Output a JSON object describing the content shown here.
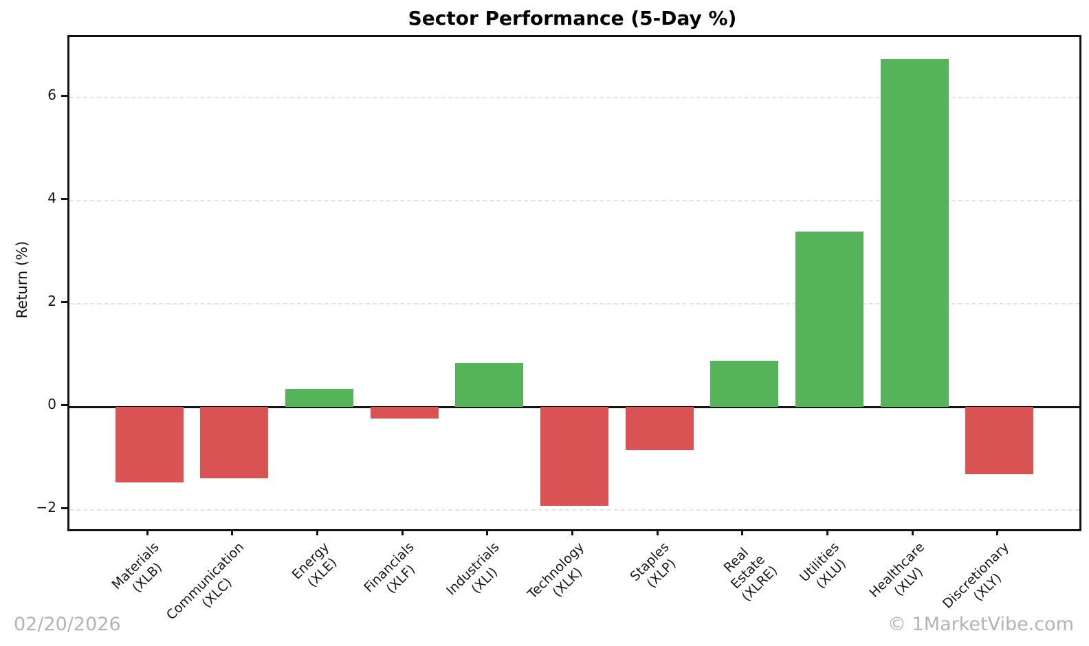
{
  "figure": {
    "title": "Sector Performance (5-Day %)",
    "watermark_date": "02/20/2026",
    "watermark_brand": "© 1MarketVibe.com"
  },
  "colors": {
    "positive_bar": "#55b35a",
    "negative_bar": "#d95354",
    "gridline": "#e3e3e3",
    "axis": "#141414",
    "watermark": "#b3b3b3"
  },
  "chart_data": {
    "type": "bar",
    "title": "Sector Performance (5-Day %)",
    "xlabel": "",
    "ylabel": "Return (%)",
    "ylim": [
      -2.37,
      7.17
    ],
    "yticks": [
      -2,
      0,
      2,
      4,
      6
    ],
    "ytick_labels": [
      "−2",
      "0",
      "2",
      "4",
      "6"
    ],
    "grid": "horizontal dashed gridlines at y ticks",
    "legend": "none",
    "color_rule": "green bar if value >= 0, red bar if value < 0",
    "zero_line": true,
    "categories": [
      "Materials\n(XLB)",
      "Communication\n(XLC)",
      "Energy\n(XLE)",
      "Financials\n(XLF)",
      "Industrials\n(XLI)",
      "Technology\n(XLK)",
      "Staples\n(XLP)",
      "Real Estate\n(XLRE)",
      "Utilities\n(XLU)",
      "Healthcare\n(XLV)",
      "Discretionary\n(XLY)"
    ],
    "values": [
      -1.47,
      -1.38,
      0.35,
      -0.23,
      0.85,
      -1.92,
      -0.84,
      0.9,
      3.4,
      6.74,
      -1.3
    ]
  }
}
